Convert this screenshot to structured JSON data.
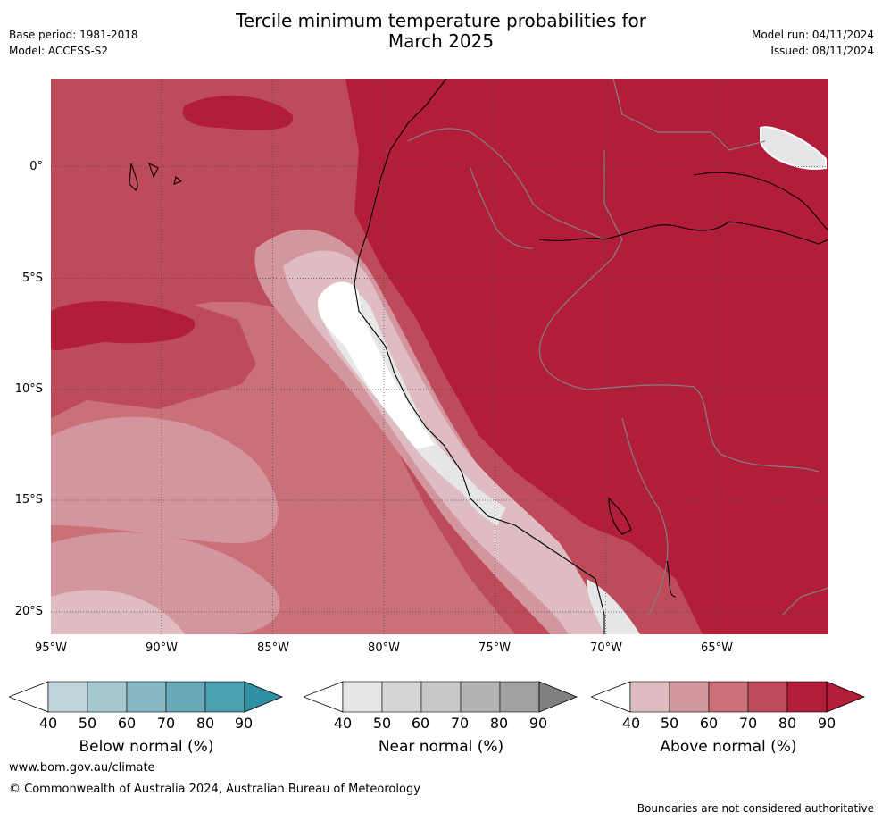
{
  "header": {
    "title_line1": "Tercile minimum temperature probabilities for",
    "title_line2": "March 2025",
    "base_period": "Base period: 1981-2018",
    "model": "Model: ACCESS-S2",
    "model_run": "Model run: 04/11/2024",
    "issued": "Issued: 08/11/2024"
  },
  "map": {
    "latitude_labels": [
      "0°",
      "5°S",
      "10°S",
      "15°S",
      "20°S"
    ],
    "longitude_labels": [
      "95°W",
      "90°W",
      "85°W",
      "80°W",
      "75°W",
      "70°W",
      "65°W"
    ],
    "dominant_category": "Above normal",
    "colors": {
      "above_40_50": "#dfbcc1",
      "above_50_60": "#d4969e",
      "above_60_70": "#c97079",
      "above_70_80": "#be4b5a",
      "above_80_90": "#b21e3a",
      "near_normal": "#e6e6e6",
      "no_dominance": "#ffffff",
      "grid": "#444444",
      "country_border": "#808080",
      "coastline": "#000000"
    }
  },
  "legend": {
    "colorbars": [
      {
        "id": "below",
        "label": "Below normal (%)",
        "ticks": [
          "40",
          "50",
          "60",
          "70",
          "80",
          "90"
        ],
        "colors": [
          "#bdd5db",
          "#a5c8d0",
          "#88b8c4",
          "#6aaab8",
          "#4a9fb0"
        ],
        "extend_color": "#2f8fa3"
      },
      {
        "id": "near",
        "label": "Near normal (%)",
        "ticks": [
          "40",
          "50",
          "60",
          "70",
          "80",
          "90"
        ],
        "colors": [
          "#e6e6e6",
          "#d6d6d6",
          "#c8c8c8",
          "#b4b4b4",
          "#a1a1a1"
        ],
        "extend_color": "#808080"
      },
      {
        "id": "above",
        "label": "Above normal (%)",
        "ticks": [
          "40",
          "50",
          "60",
          "70",
          "80",
          "90"
        ],
        "colors": [
          "#dfbcc1",
          "#d4969e",
          "#c97079",
          "#be4b5a",
          "#b21e3a"
        ],
        "extend_color": "#b21e3a"
      }
    ]
  },
  "footer": {
    "website": "www.bom.gov.au/climate",
    "copyright": "© Commonwealth of Australia 2024, Australian Bureau of Meteorology",
    "disclaimer": "Boundaries are not considered authoritative"
  }
}
